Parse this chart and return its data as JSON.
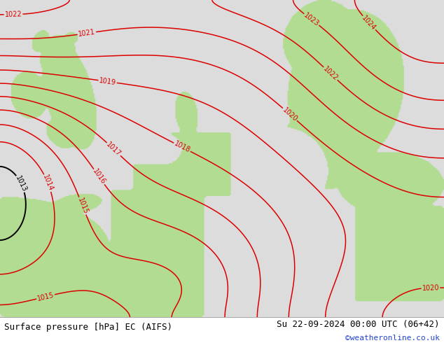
{
  "title_left": "Surface pressure [hPa] EC (AIFS)",
  "title_right": "Su 22-09-2024 00:00 UTC (06+42)",
  "credit": "©weatheronline.co.uk",
  "bg_color": "#dcdcdc",
  "land_color": "#b8dca0",
  "contour_color_red": "#dd0000",
  "contour_color_black": "#000000",
  "label_fontsize": 7,
  "title_fontsize": 9,
  "credit_fontsize": 8,
  "figsize": [
    6.34,
    4.9
  ],
  "dpi": 100
}
